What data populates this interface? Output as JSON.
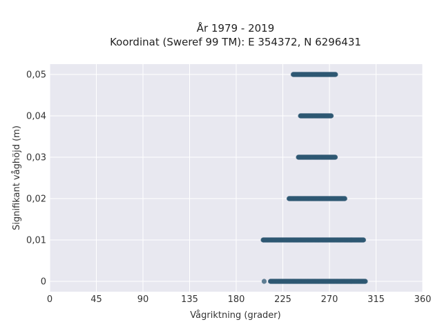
{
  "chart_data": {
    "type": "scatter",
    "title": "År 1979 - 2019",
    "subtitle": "Koordinat (Sweref 99 TM): E 354372, N 6296431",
    "xlabel": "Vågriktning (grader)",
    "ylabel": "Signifikant våghöjd (m)",
    "xlim": [
      0,
      360
    ],
    "ylim": [
      -0.0025,
      0.0525
    ],
    "xticks": [
      0,
      45,
      90,
      135,
      180,
      225,
      270,
      315,
      360
    ],
    "xtick_labels": [
      "0",
      "45",
      "90",
      "135",
      "180",
      "225",
      "270",
      "315",
      "360"
    ],
    "yticks": [
      0,
      0.01,
      0.02,
      0.03,
      0.04,
      0.05
    ],
    "ytick_labels": [
      "0",
      "0,01",
      "0,02",
      "0,03",
      "0,04",
      "0,05"
    ],
    "grid": true,
    "point_color": "#2f5873",
    "background_color": "#e8e8f0",
    "clusters": [
      {
        "y": 0,
        "x_min": 213,
        "x_max": 305
      },
      {
        "y": 0.01,
        "x_min": 206,
        "x_max": 303
      },
      {
        "y": 0.02,
        "x_min": 231,
        "x_max": 285
      },
      {
        "y": 0.03,
        "x_min": 240,
        "x_max": 276
      },
      {
        "y": 0.04,
        "x_min": 242,
        "x_max": 272
      },
      {
        "y": 0.05,
        "x_min": 235,
        "x_max": 276
      }
    ],
    "outliers": [
      {
        "x": 207,
        "y": 0
      }
    ]
  }
}
